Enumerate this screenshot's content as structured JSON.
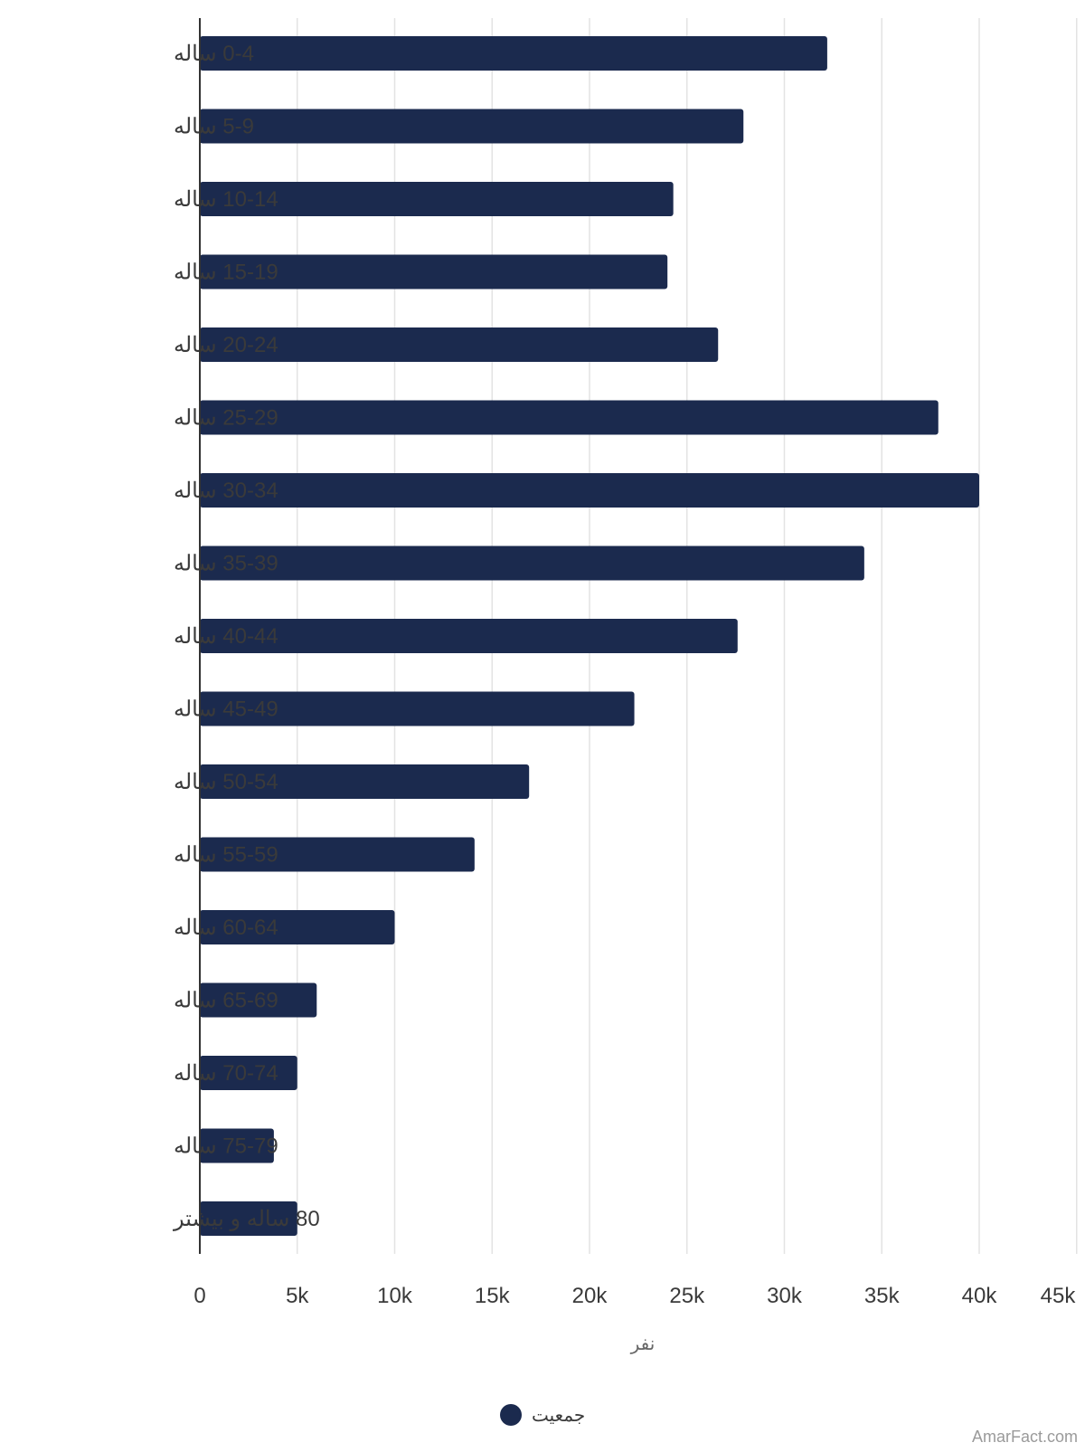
{
  "chart_data": {
    "type": "bar",
    "orientation": "horizontal",
    "categories": [
      "0-4 ساله",
      "5-9 ساله",
      "10-14 ساله",
      "15-19 ساله",
      "20-24 ساله",
      "25-29 ساله",
      "30-34 ساله",
      "35-39 ساله",
      "40-44 ساله",
      "45-49 ساله",
      "50-54 ساله",
      "55-59 ساله",
      "60-64 ساله",
      "65-69 ساله",
      "70-74 ساله",
      "75-79 ساله",
      "80 ساله و بیشتر"
    ],
    "series": [
      {
        "name": "جمعیت",
        "color": "#1b2a4e",
        "values": [
          32200,
          27900,
          24300,
          24000,
          26600,
          37900,
          40000,
          34100,
          27600,
          22300,
          16900,
          14100,
          10000,
          6000,
          5000,
          3800,
          5000
        ]
      }
    ],
    "x_ticks": [
      "0",
      "5k",
      "10k",
      "15k",
      "20k",
      "25k",
      "30k",
      "35k",
      "40k",
      "45k"
    ],
    "xlim": [
      0,
      45000
    ],
    "xlabel": "نفر",
    "grid": true,
    "legend_position": "bottom-center"
  },
  "watermark": "AmarFact.com",
  "colors": {
    "bar": "#1b2a4e",
    "grid": "#e3e3e3",
    "axis": "#333333"
  }
}
